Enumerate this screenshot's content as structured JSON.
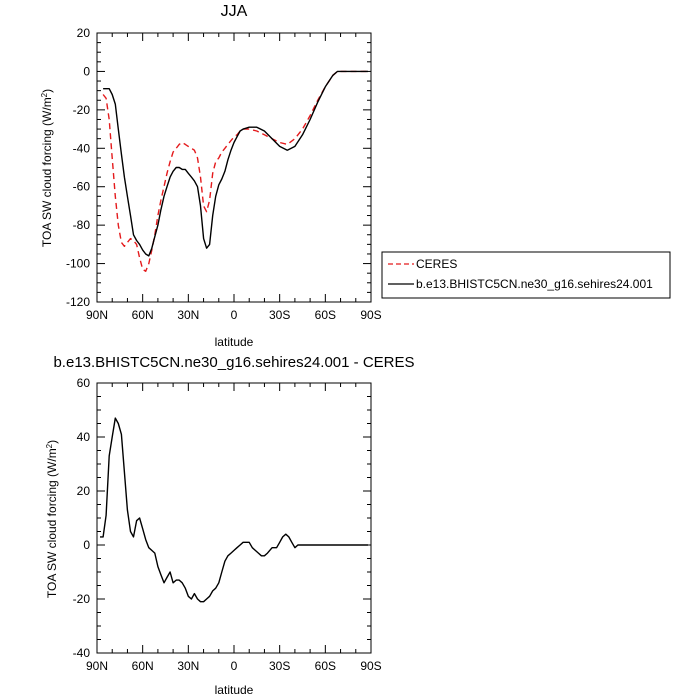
{
  "chart_data": [
    {
      "type": "line",
      "title": "JJA",
      "xlabel": "latitude",
      "ylabel": "TOA SW cloud forcing (W/m",
      "ylabel_sup": "2",
      "ylabel_suffix": ")",
      "xlim": [
        90,
        -90
      ],
      "ylim": [
        -120,
        20
      ],
      "xticks": [
        90,
        60,
        30,
        0,
        -30,
        -60,
        -90
      ],
      "xtick_labels": [
        "90N",
        "60N",
        "30N",
        "0",
        "30S",
        "60S",
        "90S"
      ],
      "yticks": [
        20,
        0,
        -20,
        -40,
        -60,
        -80,
        -100,
        -120
      ],
      "ytick_labels": [
        "20",
        "0",
        "-20",
        "-40",
        "-60",
        "-80",
        "-100",
        "-120"
      ],
      "legend_position": "right",
      "series": [
        {
          "name": "CERES",
          "color": "#e41a1c",
          "dash": "dashed",
          "x": [
            86,
            84,
            82,
            80,
            78,
            76,
            74,
            72,
            70,
            68,
            66,
            64,
            62,
            60,
            58,
            56,
            54,
            52,
            50,
            48,
            46,
            44,
            42,
            40,
            38,
            36,
            34,
            32,
            30,
            28,
            26,
            24,
            22,
            20,
            18,
            16,
            14,
            12,
            10,
            8,
            6,
            4,
            2,
            0,
            -2,
            -4,
            -6,
            -10,
            -15,
            -20,
            -25,
            -30,
            -35,
            -40,
            -45,
            -50,
            -55,
            -60,
            -65,
            -68,
            -72,
            -76,
            -80,
            -85,
            -88
          ],
          "y": [
            -12,
            -14,
            -25,
            -45,
            -65,
            -80,
            -89,
            -91,
            -89,
            -87,
            -88,
            -90,
            -97,
            -103,
            -104,
            -100,
            -93,
            -85,
            -75,
            -67,
            -60,
            -53,
            -47,
            -42,
            -40,
            -38,
            -37,
            -38,
            -39,
            -40,
            -41,
            -45,
            -55,
            -70,
            -73,
            -67,
            -53,
            -47,
            -45,
            -42,
            -40,
            -38,
            -36,
            -34,
            -33,
            -31,
            -30,
            -30,
            -31,
            -33,
            -35,
            -37,
            -38,
            -35,
            -30,
            -23,
            -15,
            -8,
            -2,
            0,
            0,
            0,
            0,
            0,
            0
          ]
        },
        {
          "name": "b.e13.BHISTC5CN.ne30_g16.sehires24.001",
          "color": "#000000",
          "dash": "solid",
          "x": [
            86,
            84,
            82,
            80,
            78,
            76,
            74,
            72,
            70,
            68,
            66,
            64,
            62,
            60,
            58,
            56,
            54,
            52,
            50,
            48,
            46,
            44,
            42,
            40,
            38,
            36,
            34,
            32,
            30,
            28,
            26,
            24,
            22,
            20,
            18,
            16,
            14,
            12,
            10,
            8,
            6,
            4,
            2,
            0,
            -2,
            -4,
            -6,
            -10,
            -15,
            -20,
            -25,
            -30,
            -35,
            -40,
            -45,
            -50,
            -55,
            -60,
            -65,
            -68,
            -72,
            -76,
            -80,
            -85,
            -88
          ],
          "y": [
            -9,
            -9,
            -9,
            -12,
            -17,
            -30,
            -43,
            -55,
            -65,
            -75,
            -85,
            -88,
            -90,
            -93,
            -95,
            -96,
            -92,
            -86,
            -80,
            -72,
            -65,
            -60,
            -55,
            -52,
            -50,
            -50,
            -51,
            -51,
            -53,
            -55,
            -57,
            -60,
            -70,
            -87,
            -92,
            -90,
            -75,
            -65,
            -59,
            -56,
            -52,
            -46,
            -41,
            -37,
            -34,
            -31,
            -30,
            -29,
            -29,
            -31,
            -35,
            -39,
            -41,
            -39,
            -33,
            -25,
            -16,
            -8,
            -2,
            0,
            0,
            0,
            0,
            0,
            0
          ]
        }
      ]
    },
    {
      "type": "line",
      "title": "b.e13.BHISTC5CN.ne30_g16.sehires24.001 - CERES",
      "xlabel": "latitude",
      "ylabel": "TOA SW cloud forcing (W/m",
      "ylabel_sup": "2",
      "ylabel_suffix": ")",
      "xlim": [
        90,
        -90
      ],
      "ylim": [
        -40,
        60
      ],
      "xticks": [
        90,
        60,
        30,
        0,
        -30,
        -60,
        -90
      ],
      "xtick_labels": [
        "90N",
        "60N",
        "30N",
        "0",
        "30S",
        "60S",
        "90S"
      ],
      "yticks": [
        60,
        40,
        20,
        0,
        -20,
        -40
      ],
      "ytick_labels": [
        "60",
        "40",
        "20",
        "0",
        "-20",
        "-40"
      ],
      "series": [
        {
          "color": "#000000",
          "dash": "solid",
          "x": [
            88,
            86,
            84,
            82,
            80,
            78,
            76,
            74,
            72,
            70,
            68,
            66,
            64,
            62,
            60,
            58,
            56,
            54,
            52,
            50,
            48,
            46,
            44,
            42,
            40,
            38,
            36,
            34,
            32,
            30,
            28,
            26,
            24,
            22,
            20,
            18,
            16,
            14,
            12,
            10,
            8,
            6,
            4,
            2,
            0,
            -2,
            -4,
            -6,
            -8,
            -10,
            -12,
            -14,
            -16,
            -18,
            -20,
            -22,
            -25,
            -28,
            -30,
            -32,
            -34,
            -36,
            -38,
            -40,
            -42,
            -44,
            -46,
            -48,
            -50,
            -52,
            -54,
            -56,
            -58,
            -60,
            -62,
            -64,
            -66,
            -68,
            -70,
            -75,
            -80,
            -85,
            -88
          ],
          "y": [
            3,
            3,
            11,
            33,
            40,
            47,
            45,
            41,
            27,
            13,
            5,
            3,
            9,
            10,
            6,
            2,
            -1,
            -2,
            -3,
            -8,
            -11,
            -14,
            -12,
            -10,
            -14,
            -13,
            -13,
            -14,
            -16,
            -19,
            -20,
            -18,
            -20,
            -21,
            -21,
            -20,
            -19,
            -17,
            -16,
            -14,
            -10,
            -6,
            -4,
            -3,
            -2,
            -1,
            0,
            1,
            1,
            1,
            -1,
            -2,
            -3,
            -4,
            -4,
            -3,
            -1,
            -1,
            1,
            3,
            4,
            3,
            1,
            -1,
            0,
            0,
            0,
            0,
            0,
            0,
            0,
            0,
            0,
            0,
            0,
            0,
            0,
            0,
            0,
            0,
            0,
            0,
            0
          ]
        }
      ]
    }
  ]
}
